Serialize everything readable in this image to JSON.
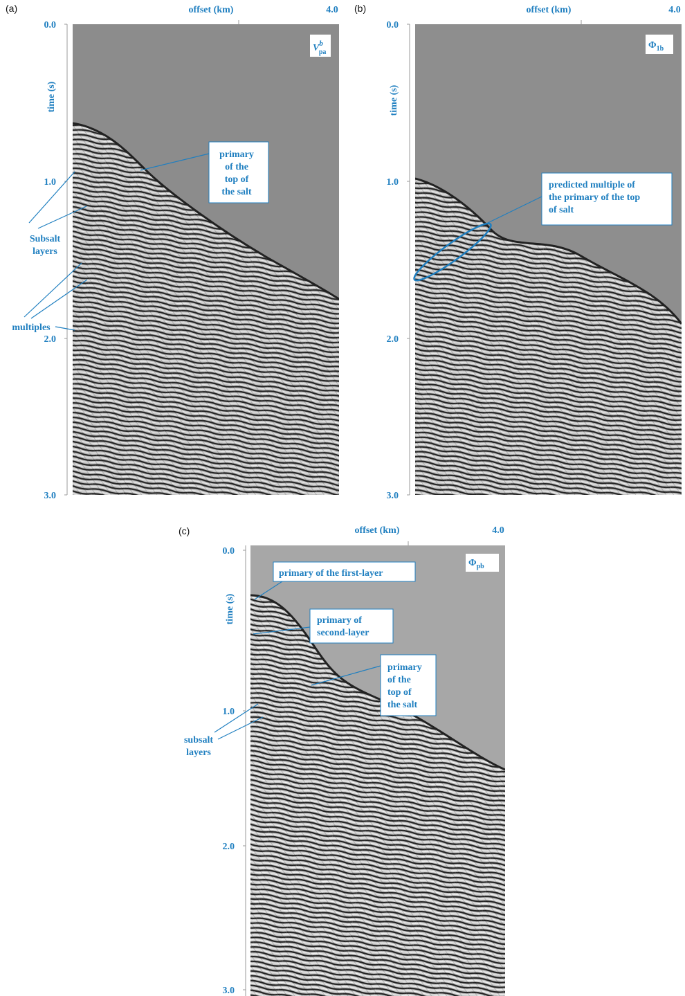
{
  "panels": [
    {
      "label": "(a)",
      "x_axis_label": "offset (km)",
      "x_tick": "4.0",
      "y_axis_label": "time (s)",
      "y_ticks": [
        "0.0",
        "1.0",
        "2.0",
        "3.0"
      ],
      "badge": {
        "base": "V",
        "sup": "b",
        "sub": "pa"
      },
      "annotations": [
        {
          "lines": [
            "primary",
            "of the",
            "top of",
            "the salt"
          ]
        },
        {
          "lines": [
            "Subsalt",
            "layers"
          ]
        },
        {
          "lines": [
            "multiples"
          ]
        }
      ]
    },
    {
      "label": "(b)",
      "x_axis_label": "offset (km)",
      "x_tick": "4.0",
      "y_axis_label": "time (s)",
      "y_ticks": [
        "0.0",
        "1.0",
        "2.0",
        "3.0"
      ],
      "badge": {
        "base": "Φ",
        "sub": "1b"
      },
      "annotations": [
        {
          "lines": [
            "predicted multiple of",
            "the  primary of the top",
            "of salt"
          ]
        }
      ]
    },
    {
      "label": "(c)",
      "x_axis_label": "offset (km)",
      "x_tick": "4.0",
      "y_axis_label": "time (s)",
      "y_ticks": [
        "0.0",
        "1.0",
        "2.0",
        "3.0"
      ],
      "badge": {
        "base": "Φ",
        "sub": "pb"
      },
      "annotations": [
        {
          "lines": [
            "primary of the first-layer"
          ]
        },
        {
          "lines": [
            "primary of",
            "second-layer"
          ]
        },
        {
          "lines": [
            "primary",
            "of the",
            "top of",
            "the salt"
          ]
        },
        {
          "lines": [
            "subsalt",
            "layers"
          ]
        }
      ]
    }
  ]
}
